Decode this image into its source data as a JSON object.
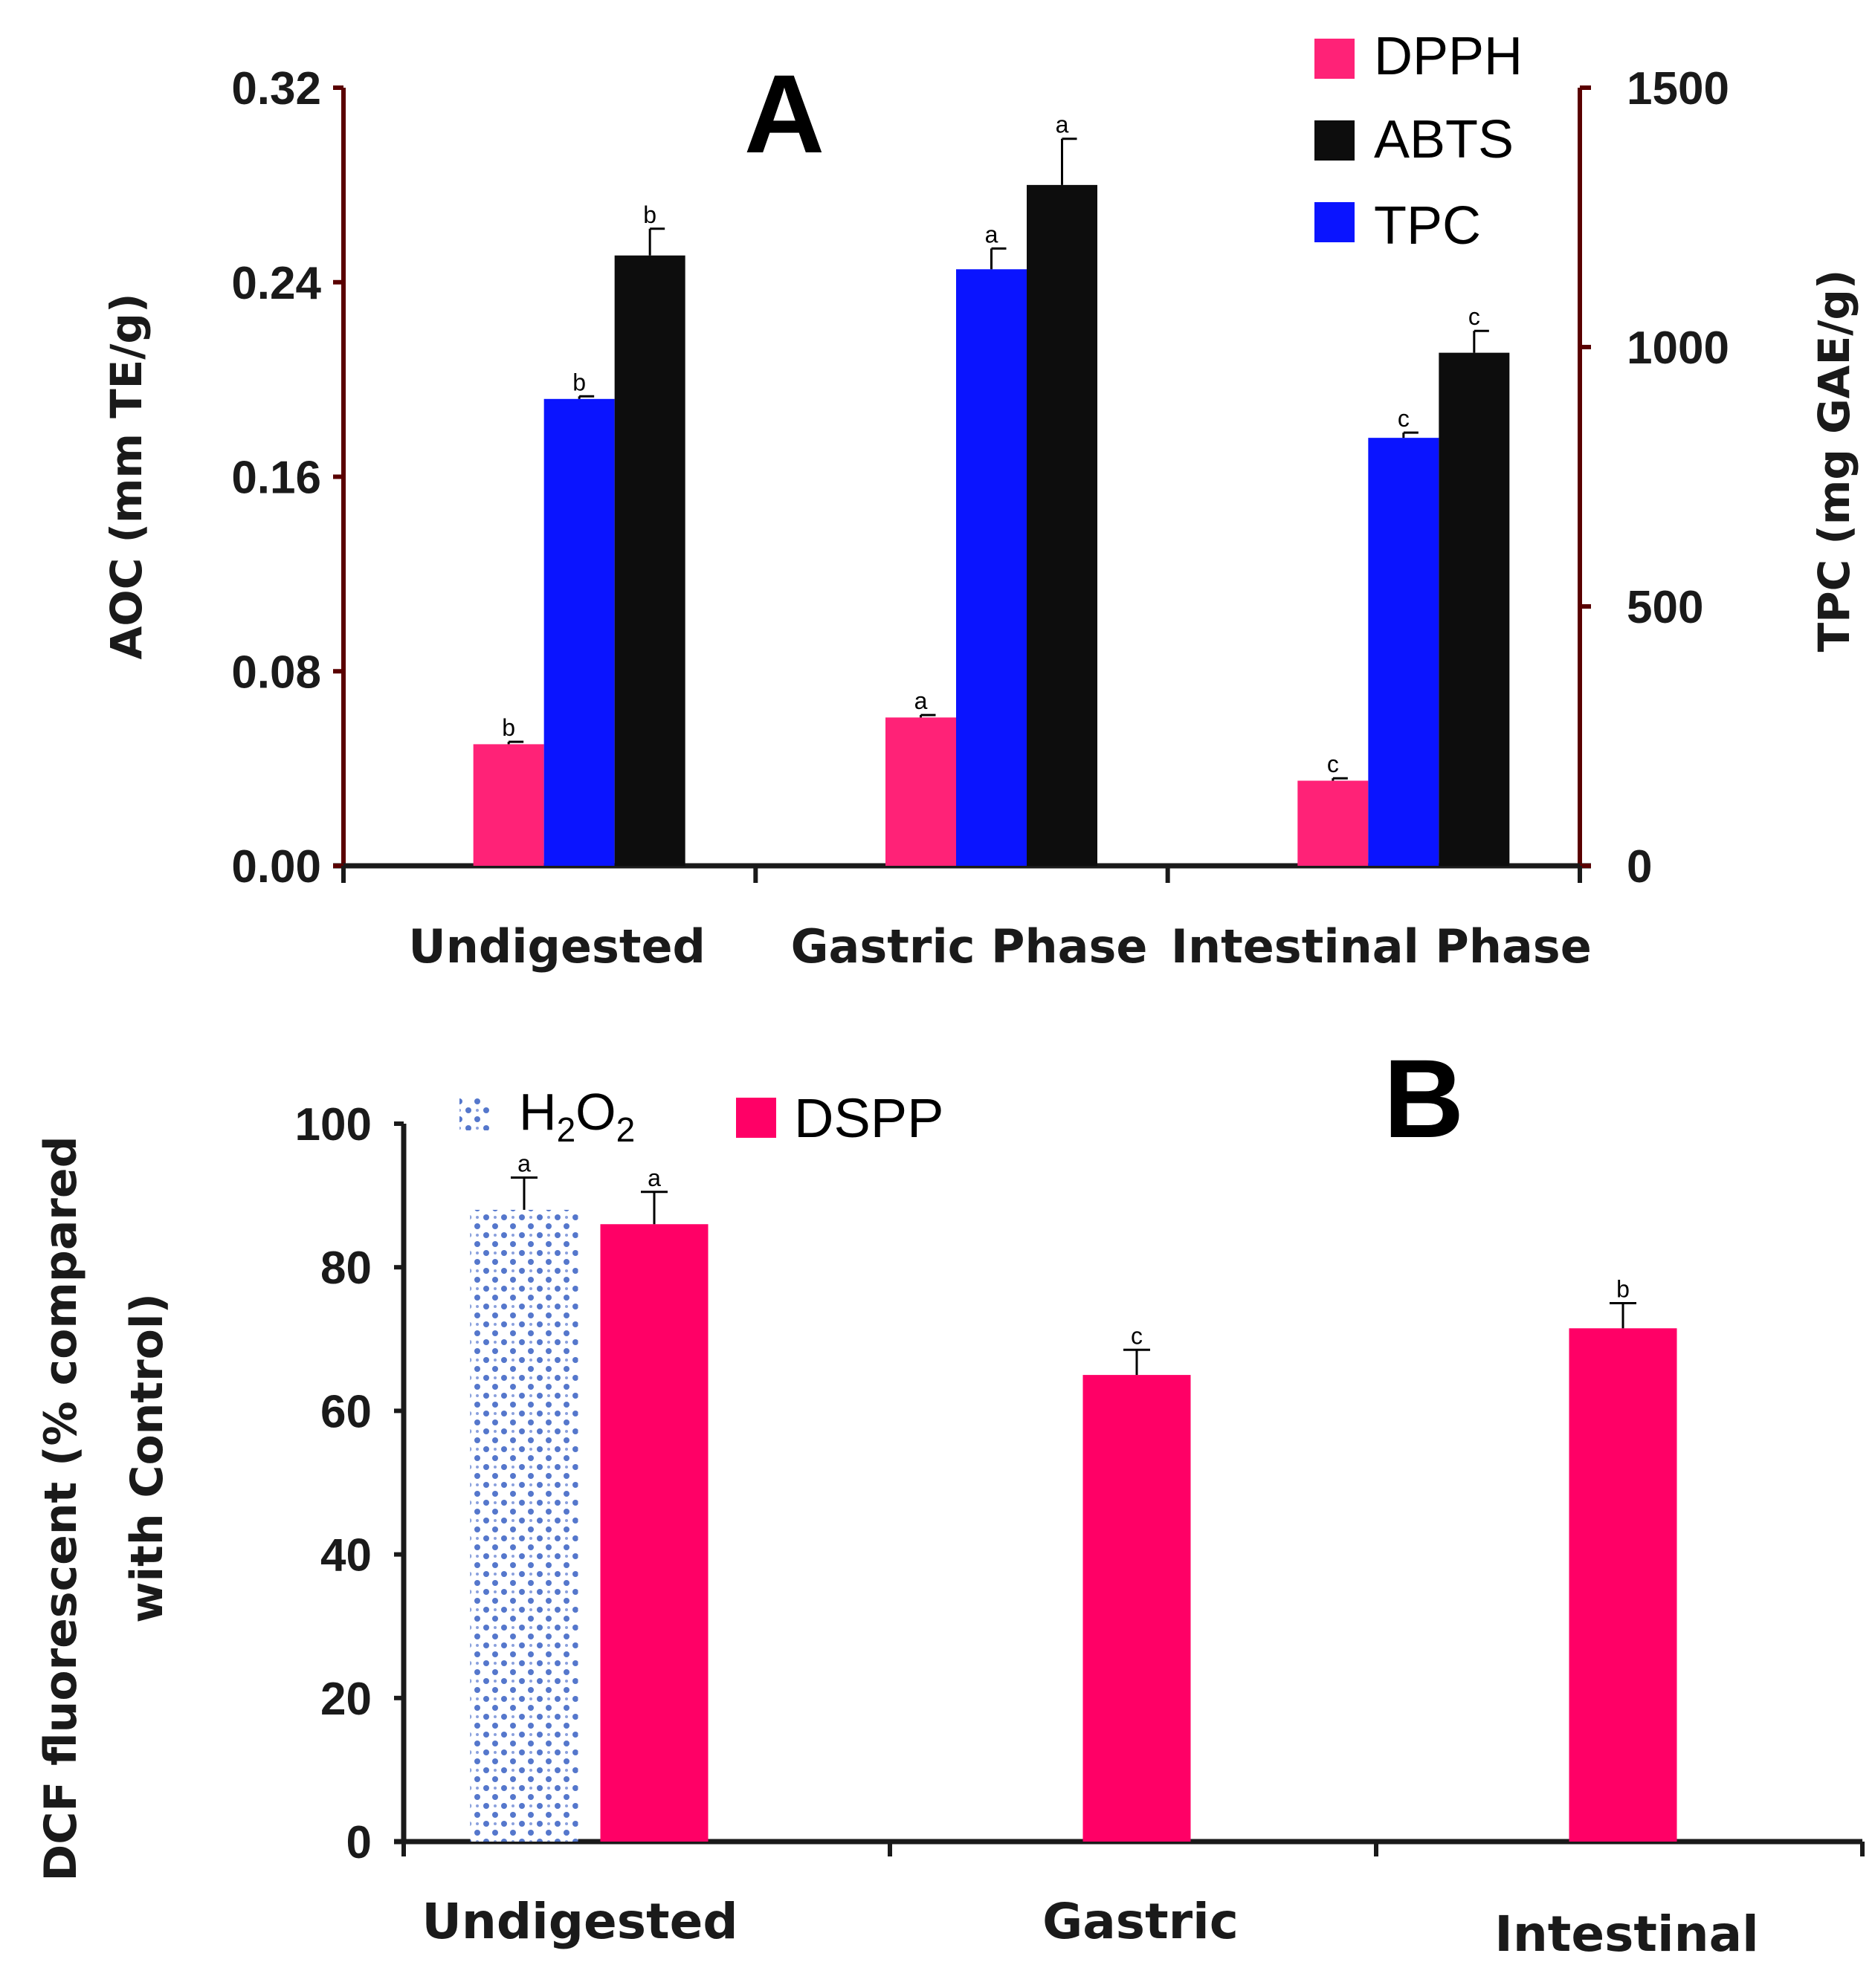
{
  "chart_data": [
    {
      "panel": "A",
      "type": "bar",
      "title": "",
      "categories": [
        "Undigested",
        "Gastric Phase",
        "Intestinal Phase"
      ],
      "ylabel": "AOC (mm TE/g)",
      "ylim": [
        0,
        0.32
      ],
      "yticks": [
        "0.00",
        "0.08",
        "0.16",
        "0.24",
        "0.32"
      ],
      "y2label": "TPC (mg GAE/g)",
      "y2lim": [
        0,
        1500
      ],
      "y2ticks": [
        "0",
        "500",
        "1000",
        "1500"
      ],
      "legend_position": "top-right",
      "series": [
        {
          "name": "DPPH",
          "axis": "left",
          "color": "#ff2277",
          "values": [
            0.05,
            0.061,
            0.035
          ],
          "errors": [
            0.001,
            0.001,
            0.001
          ],
          "letters": [
            "b",
            "a",
            "c"
          ]
        },
        {
          "name": "TPC",
          "axis": "right",
          "color": "#0a14ff",
          "values": [
            900,
            1150,
            825
          ],
          "errors": [
            5,
            40,
            10
          ],
          "letters": [
            "b",
            "a",
            "c"
          ]
        },
        {
          "name": "ABTS",
          "axis": "left",
          "color": "#0d0d0d",
          "values": [
            0.251,
            0.28,
            0.211
          ],
          "errors": [
            0.011,
            0.019,
            0.009
          ],
          "letters": [
            "b",
            "a",
            "c"
          ]
        }
      ],
      "legend_order": [
        "DPPH",
        "ABTS",
        "TPC"
      ]
    },
    {
      "panel": "B",
      "type": "bar",
      "title": "",
      "categories": [
        "Undigested",
        "Gastric",
        "Intestinal"
      ],
      "ylabel": "DCF fluorescent (% compared with Control)",
      "ylim": [
        0,
        100
      ],
      "yticks": [
        "0",
        "20",
        "40",
        "60",
        "80",
        "100"
      ],
      "legend_position": "top-left",
      "series": [
        {
          "name": "H2O2",
          "color": "#5577cc",
          "pattern": "dots",
          "values": [
            88,
            null,
            null
          ],
          "errors": [
            4.5,
            null,
            null
          ],
          "letters": [
            "a",
            "",
            ""
          ]
        },
        {
          "name": "DSPP",
          "color": "#ff0066",
          "values": [
            86,
            65,
            71.5
          ],
          "errors": [
            4.5,
            3.5,
            3.5
          ],
          "letters": [
            "a",
            "c",
            "b"
          ]
        }
      ]
    }
  ],
  "panel_a": {
    "letter": "A",
    "ylabel": "AOC (mm TE/g)",
    "y2label": "TPC (mg GAE/g)",
    "legend": [
      "DPPH",
      "ABTS",
      "TPC"
    ]
  },
  "panel_b": {
    "letter": "B",
    "ylabel_line1": "DCF fluorescent (% compared",
    "ylabel_line2": "with Control)",
    "legend_h2o2": "H2O2",
    "legend_dspp": "DSPP"
  }
}
